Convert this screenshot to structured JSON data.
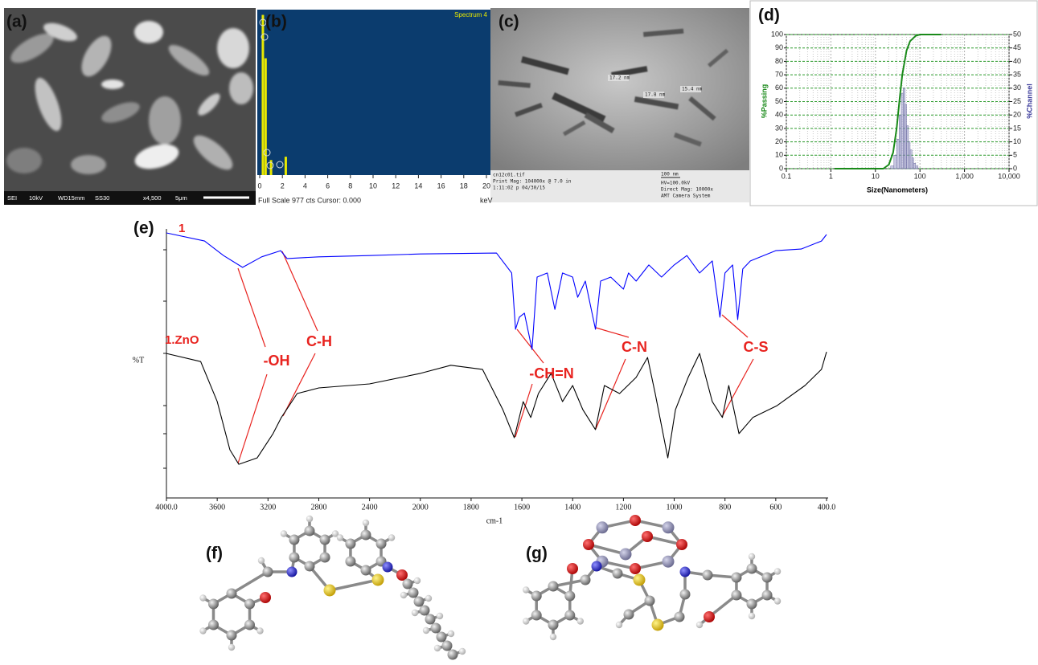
{
  "panels": {
    "a": {
      "label": "(a)",
      "info_bar": [
        "SEI",
        "10kV",
        "WD15mm",
        "SS30",
        "x4,500",
        "5μm"
      ]
    },
    "b": {
      "label": "(b)"
    },
    "c": {
      "label": "(c)",
      "image_text": [
        "cn12c01.tif",
        "Print Mag: 104000x @ 7.0 in",
        "1:11:02 p 04/30/15",
        "100 nm",
        "HV=100.0kV",
        "Direct Mag: 10000x",
        "AMT Camera System"
      ],
      "measurements": [
        "17.2 nm",
        "17.8 nm",
        "15.4 nm"
      ]
    },
    "d": {
      "label": "(d)"
    },
    "e": {
      "label": "(e)"
    },
    "f": {
      "label": "(f)"
    },
    "g": {
      "label": "(g)"
    }
  },
  "chart_data": [
    {
      "type": "bar",
      "title": "Spectrum 4",
      "footer": "Full Scale 977 cts Cursor: 0.000",
      "x_label": "keV",
      "x": [
        0.28,
        0.52,
        1.0,
        2.3
      ],
      "values": [
        960,
        700,
        90,
        110
      ],
      "color": "#e8e800",
      "background": "#0b3c6e",
      "xlim": [
        0,
        20
      ],
      "xticks": [
        0,
        2,
        4,
        6,
        8,
        10,
        12,
        14,
        16,
        18,
        20
      ],
      "ylim": [
        0,
        977
      ]
    },
    {
      "type": "line",
      "x_label": "Size(Nanometers)",
      "y_label": "%Passing",
      "y2_label": "%Channel",
      "log_x": true,
      "grid": true,
      "xlim": [
        0.1,
        10000
      ],
      "xticks": [
        0.1,
        1,
        10,
        100,
        {
          "value": 1000,
          "label": "1,000"
        },
        {
          "value": 10000,
          "label": "10,000"
        }
      ],
      "ylim": [
        0,
        100
      ],
      "yticks": [
        0,
        10,
        20,
        30,
        40,
        50,
        60,
        70,
        80,
        90,
        100
      ],
      "y2lim": [
        0,
        50
      ],
      "y2ticks": [
        0,
        5,
        10,
        15,
        20,
        25,
        30,
        35,
        40,
        45,
        50
      ],
      "series": [
        {
          "color": "#1a8a1a",
          "x": [
            1.2,
            15,
            20,
            25,
            30,
            35,
            40,
            50,
            60,
            80,
            100,
            300
          ],
          "values": [
            0,
            0,
            3,
            12,
            30,
            52,
            70,
            88,
            95,
            99,
            100,
            100
          ]
        },
        {
          "color": "#9a9ac8",
          "axis": "y2",
          "bins": [
            22,
            26,
            30,
            34,
            38,
            42,
            46,
            50,
            55,
            60,
            66,
            72,
            80,
            90
          ],
          "values": [
            1,
            5,
            11,
            20,
            28,
            30,
            24,
            16,
            10,
            7,
            4,
            2,
            1
          ]
        }
      ]
    },
    {
      "type": "line",
      "x_label": "cm-1",
      "y_label": "%T",
      "grid": false,
      "xlim": [
        4000,
        400
      ],
      "xticks": [
        {
          "value": 4000,
          "label": "4000.0"
        },
        3600,
        3200,
        2800,
        2400,
        2000,
        1800,
        1600,
        1400,
        1200,
        1000,
        800,
        600,
        {
          "value": 400,
          "label": "400.0"
        }
      ],
      "ylim": [
        0,
        100
      ],
      "series": [
        {
          "name": "1",
          "color": "#0000ff",
          "x": [
            4000,
            3700,
            3550,
            3400,
            3250,
            3100,
            3050,
            2800,
            2400,
            2000,
            1700,
            1640,
            1625,
            1610,
            1590,
            1560,
            1540,
            1500,
            1470,
            1440,
            1400,
            1380,
            1350,
            1310,
            1290,
            1250,
            1200,
            1180,
            1150,
            1100,
            1050,
            1000,
            950,
            900,
            850,
            820,
            800,
            770,
            750,
            730,
            700,
            600,
            500,
            420,
            400
          ],
          "values": [
            98.5,
            95.5,
            90.1,
            85.7,
            89.6,
            91.9,
            89.0,
            89.6,
            90.1,
            90.7,
            91.0,
            83.6,
            62.7,
            67.2,
            68.7,
            55.2,
            82.1,
            83.6,
            70.1,
            83.6,
            82.1,
            74.6,
            80.6,
            62.7,
            80.6,
            82.1,
            77.6,
            83.6,
            80.6,
            86.6,
            82.1,
            86.6,
            90.1,
            83.6,
            88.1,
            67.2,
            83.6,
            86.6,
            66.3,
            85.1,
            88.1,
            91.9,
            92.5,
            95.5,
            97.9
          ]
        },
        {
          "name": "1.ZnO",
          "color": "#000000",
          "x": [
            4000,
            3730,
            3600,
            3500,
            3430,
            3285,
            3160,
            3095,
            2970,
            2800,
            2400,
            2000,
            1880,
            1755,
            1675,
            1630,
            1595,
            1565,
            1535,
            1485,
            1440,
            1400,
            1360,
            1310,
            1275,
            1215,
            1150,
            1105,
            1075,
            1025,
            995,
            945,
            900,
            850,
            810,
            785,
            745,
            690,
            595,
            485,
            420,
            400
          ],
          "values": [
            53.7,
            50.7,
            35.8,
            17.9,
            12.5,
            14.9,
            23.9,
            29.9,
            38.8,
            40.9,
            42.4,
            46.3,
            49.3,
            47.8,
            32.8,
            22.4,
            35.8,
            29.9,
            38.8,
            46.3,
            35.8,
            41.8,
            32.8,
            25.4,
            41.8,
            38.8,
            44.8,
            52.2,
            38.8,
            14.9,
            32.8,
            44.8,
            53.7,
            35.8,
            29.9,
            41.8,
            23.9,
            29.9,
            34.3,
            41.8,
            47.8,
            54.3
          ]
        }
      ],
      "annotations": [
        "-OH",
        "C-H",
        "-CH=N",
        "C-N",
        "C-S"
      ]
    }
  ]
}
